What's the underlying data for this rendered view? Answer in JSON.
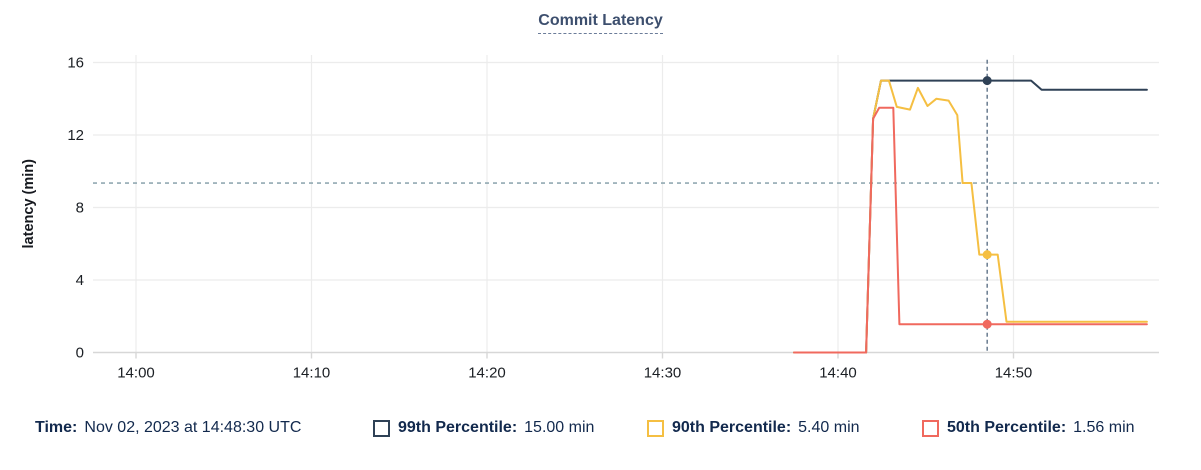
{
  "header": {
    "title": "Commit Latency"
  },
  "colors": {
    "title": "#3d4f6e",
    "legend_text": "#12294d",
    "gridline": "#ececec",
    "axis_line": "#d7d7d7",
    "tick_text": "#1b1f24",
    "axis_label": "#16191f",
    "threshold_line": "#92a9b2",
    "cursor_line": "#5e7288",
    "p99": "#2f4156",
    "p90": "#f5bf42",
    "p50": "#f0695e"
  },
  "legend": {
    "time_label": "Time:",
    "time_value": "Nov 02, 2023 at 14:48:30 UTC",
    "items": [
      {
        "name": "99th Percentile:",
        "value": "15.00 min",
        "color": "#2f4156"
      },
      {
        "name": "90th Percentile:",
        "value": "5.40 min",
        "color": "#f5bf42"
      },
      {
        "name": "50th Percentile:",
        "value": "1.56 min",
        "color": "#f0695e"
      }
    ]
  },
  "chart_data": {
    "type": "line",
    "title": "Commit Latency",
    "xlabel": "",
    "ylabel": "latency (min)",
    "ylim": [
      0,
      16
    ],
    "y_ticks": [
      0,
      4,
      8,
      12,
      16
    ],
    "x_unit": "minutes after 14:00 UTC",
    "x_domain": [
      -2.45,
      58.3
    ],
    "x_ticks": [
      {
        "label": "14:00",
        "t": 0
      },
      {
        "label": "14:10",
        "t": 10
      },
      {
        "label": "14:20",
        "t": 20
      },
      {
        "label": "14:30",
        "t": 30
      },
      {
        "label": "14:40",
        "t": 40
      },
      {
        "label": "14:50",
        "t": 50
      }
    ],
    "grid": true,
    "legend_position": "bottom",
    "threshold": {
      "value": 9.35,
      "style": "dashed"
    },
    "cursor": {
      "t": 48.5,
      "label": "Nov 02, 2023 at 14:48:30 UTC"
    },
    "series": [
      {
        "name": "99th Percentile",
        "color": "#2f4156",
        "cursor_value": 15.0,
        "points": [
          [
            37.5,
            0
          ],
          [
            41.6,
            0
          ],
          [
            42.0,
            12.9
          ],
          [
            42.45,
            15.0
          ],
          [
            51.0,
            15.0
          ],
          [
            51.6,
            14.5
          ],
          [
            57.6,
            14.5
          ]
        ]
      },
      {
        "name": "90th Percentile",
        "color": "#f5bf42",
        "cursor_value": 5.4,
        "points": [
          [
            37.5,
            0
          ],
          [
            41.6,
            0
          ],
          [
            42.0,
            12.9
          ],
          [
            42.45,
            15.0
          ],
          [
            42.9,
            15.0
          ],
          [
            43.35,
            13.55
          ],
          [
            44.1,
            13.4
          ],
          [
            44.55,
            14.6
          ],
          [
            45.1,
            13.6
          ],
          [
            45.6,
            14.0
          ],
          [
            46.3,
            13.9
          ],
          [
            46.8,
            13.1
          ],
          [
            47.1,
            9.35
          ],
          [
            47.6,
            9.35
          ],
          [
            48.05,
            5.4
          ],
          [
            49.1,
            5.4
          ],
          [
            49.6,
            1.7
          ],
          [
            57.6,
            1.7
          ]
        ]
      },
      {
        "name": "50th Percentile",
        "color": "#f0695e",
        "cursor_value": 1.56,
        "points": [
          [
            37.5,
            0
          ],
          [
            41.6,
            0
          ],
          [
            42.0,
            12.9
          ],
          [
            42.35,
            13.5
          ],
          [
            43.15,
            13.5
          ],
          [
            43.5,
            1.56
          ],
          [
            57.6,
            1.56
          ]
        ]
      }
    ]
  }
}
